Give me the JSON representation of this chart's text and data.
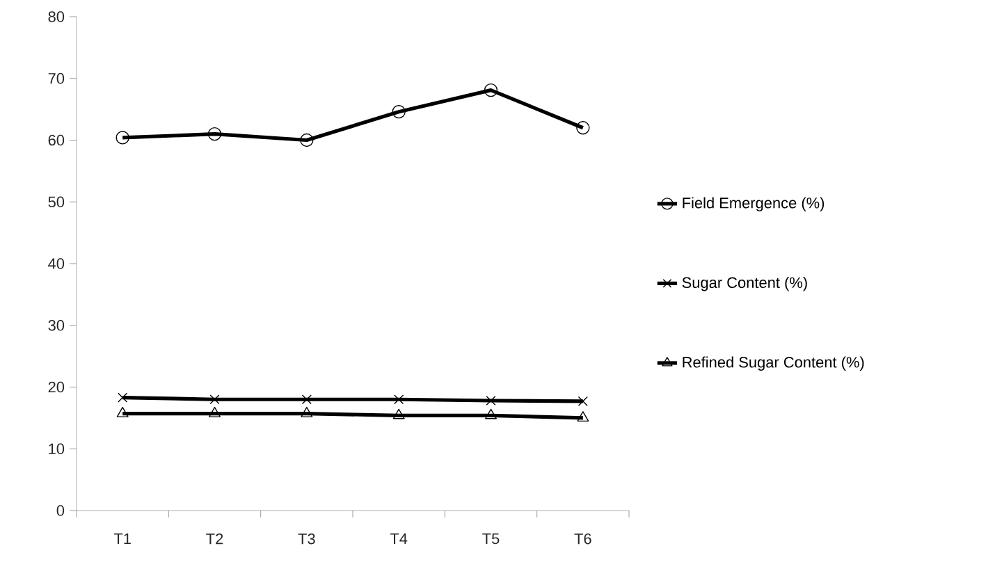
{
  "chart_data": {
    "type": "line",
    "categories": [
      "T1",
      "T2",
      "T3",
      "T4",
      "T5",
      "T6"
    ],
    "series": [
      {
        "name": "Field Emergence (%)",
        "color": "#000000",
        "marker": "circle",
        "values": [
          60.4,
          61.0,
          60.0,
          64.6,
          68.1,
          62.0
        ]
      },
      {
        "name": "Sugar Content (%)",
        "color": "#000000",
        "marker": "cross",
        "values": [
          18.3,
          18.0,
          18.0,
          18.0,
          17.8,
          17.7
        ]
      },
      {
        "name": "Refined Sugar Content (%)",
        "color": "#000000",
        "marker": "triangle",
        "values": [
          15.7,
          15.7,
          15.7,
          15.4,
          15.4,
          15.0
        ]
      }
    ],
    "ylim": [
      0,
      80
    ],
    "yticks": [
      0,
      10,
      20,
      30,
      40,
      50,
      60,
      70,
      80
    ],
    "grid": false,
    "legend": "right",
    "line_style": "solid"
  }
}
